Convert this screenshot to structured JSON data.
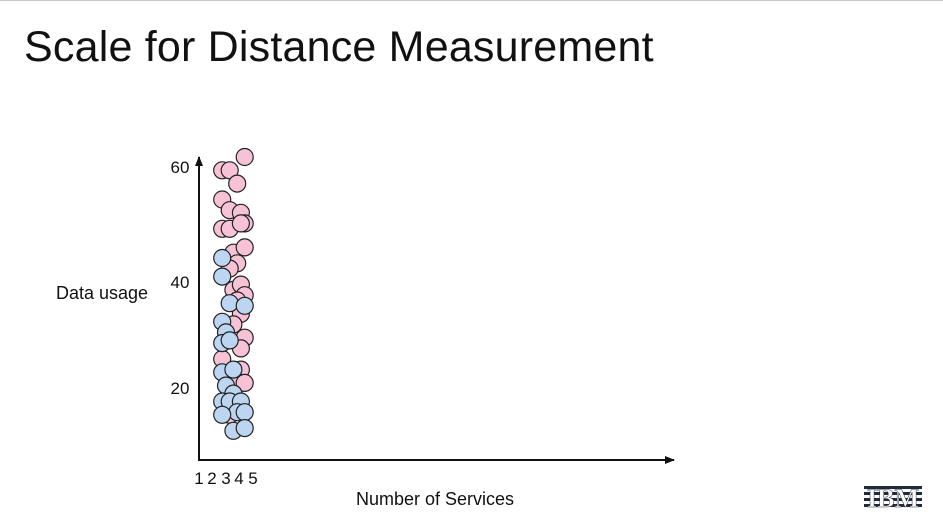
{
  "slide": {
    "title": "Scale for Distance Measurement",
    "logo": "IBM"
  },
  "chart_data": {
    "type": "scatter",
    "title": "",
    "xlabel": "Number of Services",
    "ylabel": "Data usage",
    "xticks": [
      "1",
      "2",
      "3",
      "4",
      "5"
    ],
    "yticks": [
      "20",
      "40",
      "60"
    ],
    "xlim": [
      0.5,
      64
    ],
    "ylim": [
      5,
      62
    ],
    "grid": false,
    "legend": "none",
    "series": [
      {
        "color": "#f7c2d6",
        "points": [
          [
            2,
            59.5
          ],
          [
            3,
            59.5
          ],
          [
            4,
            57
          ],
          [
            5,
            62
          ],
          [
            2,
            54
          ],
          [
            3,
            52
          ],
          [
            4.5,
            51.5
          ],
          [
            5,
            49.5
          ],
          [
            2,
            48.5
          ],
          [
            3,
            48.5
          ],
          [
            4.5,
            49.5
          ],
          [
            3.5,
            44
          ],
          [
            5,
            45
          ],
          [
            4,
            42
          ],
          [
            3,
            41
          ],
          [
            3.5,
            37
          ],
          [
            4.5,
            38
          ],
          [
            5,
            36
          ],
          [
            4,
            35
          ],
          [
            4.5,
            32.5
          ],
          [
            3.5,
            30.5
          ],
          [
            5,
            28
          ],
          [
            4.5,
            26
          ],
          [
            2,
            24
          ],
          [
            4.5,
            22
          ],
          [
            3.5,
            20.5
          ],
          [
            5,
            19.5
          ],
          [
            3,
            13.5
          ]
        ]
      },
      {
        "color": "#bcd5f1",
        "points": [
          [
            2,
            43
          ],
          [
            2,
            39.5
          ],
          [
            3,
            34.5
          ],
          [
            5,
            34
          ],
          [
            2,
            31
          ],
          [
            2.5,
            29
          ],
          [
            2,
            27
          ],
          [
            3,
            27.5
          ],
          [
            2,
            21.5
          ],
          [
            3.5,
            22
          ],
          [
            2.5,
            19
          ],
          [
            3.5,
            17.5
          ],
          [
            2,
            16
          ],
          [
            3,
            16
          ],
          [
            4.5,
            16
          ],
          [
            4,
            14
          ],
          [
            5,
            14
          ],
          [
            2,
            13.5
          ],
          [
            3.5,
            10.5
          ],
          [
            5,
            11
          ]
        ]
      }
    ]
  }
}
